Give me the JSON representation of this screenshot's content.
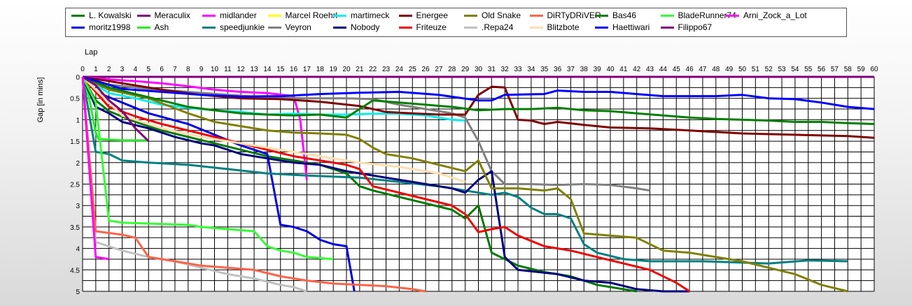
{
  "chart_data": {
    "type": "line",
    "xlabel": "Lap",
    "ylabel": "Gap [in mins]",
    "xlim": [
      0,
      60
    ],
    "ylim": [
      0,
      5
    ],
    "y_inverted": true,
    "grid": true,
    "legend_position": "top",
    "x_ticks": [
      0,
      1,
      2,
      3,
      4,
      5,
      6,
      7,
      8,
      9,
      10,
      11,
      12,
      13,
      14,
      15,
      16,
      17,
      18,
      19,
      20,
      21,
      22,
      23,
      24,
      25,
      26,
      27,
      28,
      29,
      30,
      31,
      32,
      33,
      34,
      35,
      36,
      37,
      38,
      39,
      40,
      41,
      42,
      43,
      44,
      45,
      46,
      47,
      48,
      49,
      50,
      51,
      52,
      53,
      54,
      55,
      56,
      57,
      58,
      59,
      60
    ],
    "y_ticks": [
      0,
      0.5,
      1,
      1.5,
      2,
      2.5,
      3,
      3.5,
      4,
      4.5,
      5
    ],
    "y_tick_labels": [
      "0",
      "0.5",
      "1",
      "1.5",
      "2",
      "2.5",
      "3",
      "3.5",
      "4",
      "4.5",
      "5"
    ],
    "series": [
      {
        "name": "L. Kowalski",
        "color": "#007a00",
        "x": [
          0,
          1,
          2,
          4,
          6,
          8,
          10,
          12,
          14,
          16,
          18,
          20,
          21,
          22,
          24,
          26,
          28,
          29,
          30,
          31,
          32,
          33,
          35,
          37,
          39,
          42
        ],
        "y": [
          0,
          0.55,
          0.8,
          1.05,
          1.25,
          1.4,
          1.55,
          1.7,
          1.85,
          1.95,
          2.05,
          2.25,
          2.55,
          2.65,
          2.8,
          2.95,
          3.1,
          3.3,
          3.0,
          4.1,
          4.25,
          4.4,
          4.55,
          4.65,
          4.85,
          5.0
        ]
      },
      {
        "name": "moritz1998",
        "color": "#0000e0",
        "x": [
          0,
          1,
          3,
          5,
          8,
          10,
          12,
          14,
          15,
          16,
          17,
          18,
          19,
          20,
          20.6
        ],
        "y": [
          0,
          0.35,
          0.6,
          0.85,
          1.1,
          1.35,
          1.6,
          1.8,
          3.45,
          3.5,
          3.6,
          3.8,
          3.9,
          3.95,
          5.0
        ]
      },
      {
        "name": "Meraculix",
        "color": "#800080",
        "x": [
          0,
          60
        ],
        "y": [
          0,
          0
        ]
      },
      {
        "name": "Ash",
        "color": "#22ee22",
        "x": [
          0,
          0.5,
          1,
          1.2,
          3,
          5
        ],
        "y": [
          0,
          0.5,
          1.3,
          1.45,
          1.48,
          1.48
        ]
      },
      {
        "name": "midlander",
        "color": "#ff00ff",
        "x": [
          0,
          2,
          4,
          6,
          8,
          10,
          12,
          14,
          16,
          16.5,
          17
        ],
        "y": [
          0,
          0.06,
          0.1,
          0.15,
          0.22,
          0.3,
          0.35,
          0.38,
          0.45,
          1.0,
          2.4
        ]
      },
      {
        "name": "speedjunkie",
        "color": "#008080",
        "x": [
          0,
          1,
          2,
          3,
          5,
          8,
          11,
          14,
          17,
          21,
          24,
          27,
          29,
          31,
          32,
          33,
          34,
          35,
          36,
          37,
          38,
          39,
          41,
          43,
          45,
          47,
          49,
          52,
          55,
          58
        ],
        "y": [
          0,
          1.75,
          1.8,
          1.95,
          2.0,
          2.05,
          2.15,
          2.25,
          2.3,
          2.35,
          2.45,
          2.55,
          2.65,
          2.75,
          2.7,
          2.8,
          3.05,
          3.2,
          3.2,
          3.3,
          3.9,
          4.1,
          4.25,
          4.3,
          4.3,
          4.3,
          4.32,
          4.35,
          4.28,
          4.3
        ]
      },
      {
        "name": "Marcel Roehrl",
        "color": "#ffff00",
        "x": [],
        "y": []
      },
      {
        "name": "Veyron",
        "color": "#808080",
        "x": [
          0,
          2,
          5,
          8,
          11,
          14,
          17,
          20,
          22,
          24,
          26,
          28,
          29,
          30,
          31,
          32,
          34,
          36,
          38,
          40,
          42,
          43
        ],
        "y": [
          0,
          0.18,
          0.28,
          0.35,
          0.42,
          0.48,
          0.5,
          0.5,
          0.52,
          0.65,
          0.75,
          0.85,
          0.95,
          1.5,
          2.2,
          2.5,
          2.5,
          2.52,
          2.5,
          2.52,
          2.6,
          2.65
        ]
      },
      {
        "name": "martimeck",
        "color": "#00eeee",
        "x": [
          0,
          2,
          4,
          6,
          8,
          10,
          12,
          14,
          16,
          18,
          20,
          22,
          24,
          26,
          28,
          29
        ],
        "y": [
          0,
          0.38,
          0.5,
          0.65,
          0.72,
          0.78,
          0.82,
          0.88,
          0.86,
          0.88,
          0.88,
          0.86,
          0.86,
          0.9,
          1.0,
          1.02
        ]
      },
      {
        "name": "Nobody",
        "color": "#000080",
        "x": [
          0,
          1,
          2,
          3,
          5,
          7,
          9,
          10,
          12,
          14,
          16,
          18,
          20,
          22,
          24,
          25,
          26,
          28,
          29,
          30,
          31,
          32,
          33,
          36,
          38,
          40,
          42,
          44,
          46
        ],
        "y": [
          0,
          0.7,
          0.85,
          1.05,
          1.2,
          1.4,
          1.55,
          1.6,
          1.8,
          1.9,
          2.0,
          2.05,
          2.2,
          2.3,
          2.4,
          2.45,
          2.5,
          2.6,
          2.7,
          2.4,
          2.2,
          4.2,
          4.5,
          4.6,
          4.75,
          4.8,
          4.95,
          5.0,
          5.0
        ]
      },
      {
        "name": "Energee",
        "color": "#800000",
        "x": [
          0,
          3,
          6,
          9,
          12,
          15,
          18,
          21,
          23,
          25,
          27,
          29,
          30,
          31,
          32,
          33,
          34,
          35,
          36,
          38,
          40,
          43,
          46,
          50,
          54,
          58,
          60
        ],
        "y": [
          0,
          0.15,
          0.3,
          0.42,
          0.5,
          0.52,
          0.58,
          0.68,
          0.82,
          0.85,
          0.88,
          0.88,
          0.42,
          0.23,
          0.25,
          1.0,
          1.02,
          1.1,
          1.05,
          1.12,
          1.18,
          1.2,
          1.25,
          1.32,
          1.35,
          1.38,
          1.42
        ]
      },
      {
        "name": "Friteuze",
        "color": "#ee0000",
        "x": [
          0,
          2,
          4,
          6,
          8,
          10,
          12,
          14,
          16,
          18,
          20,
          21,
          22,
          24,
          26,
          28,
          29,
          30,
          31,
          32,
          33,
          35,
          37,
          39,
          41,
          43,
          45,
          46
        ],
        "y": [
          0,
          0.7,
          0.92,
          1.1,
          1.25,
          1.4,
          1.55,
          1.7,
          1.85,
          1.95,
          2.05,
          2.15,
          2.55,
          2.7,
          2.85,
          3.0,
          3.2,
          3.62,
          3.55,
          3.5,
          3.7,
          3.95,
          4.05,
          4.2,
          4.35,
          4.5,
          4.8,
          5.0
        ]
      },
      {
        "name": "Old Snake",
        "color": "#808000",
        "x": [
          0,
          2,
          5,
          8,
          10,
          12,
          14,
          16,
          18,
          20,
          21,
          22,
          23,
          25,
          27,
          29,
          30,
          31,
          33,
          35,
          36,
          37,
          38,
          40,
          42,
          44,
          46,
          48,
          50,
          52,
          54,
          56,
          58
        ],
        "y": [
          0,
          0.3,
          0.5,
          0.85,
          1.05,
          1.15,
          1.25,
          1.3,
          1.32,
          1.35,
          1.45,
          1.65,
          1.8,
          1.9,
          2.05,
          2.2,
          1.95,
          2.6,
          2.6,
          2.65,
          2.6,
          2.85,
          3.65,
          3.7,
          3.75,
          4.05,
          4.1,
          4.2,
          4.3,
          4.45,
          4.6,
          4.85,
          5.0
        ]
      },
      {
        "name": ".Repa24",
        "color": "#c0c0c0",
        "x": [
          0,
          1,
          3,
          5,
          7,
          9,
          11,
          13,
          15,
          16,
          17
        ],
        "y": [
          0,
          3.85,
          4.05,
          4.2,
          4.3,
          4.45,
          4.6,
          4.7,
          4.85,
          4.9,
          5.0
        ]
      },
      {
        "name": "DiRTyDRiVER",
        "color": "#ff6347",
        "x": [
          0,
          1,
          3,
          4,
          5,
          7,
          9,
          11,
          13,
          15,
          17,
          19,
          21,
          23,
          25,
          26
        ],
        "y": [
          0,
          3.6,
          3.68,
          3.75,
          4.2,
          4.3,
          4.4,
          4.45,
          4.5,
          4.65,
          4.75,
          4.82,
          4.85,
          4.88,
          4.95,
          5.0
        ]
      },
      {
        "name": "Blitzbote",
        "color": "#ffdead",
        "x": [
          0,
          3,
          6,
          9,
          12,
          15,
          18,
          21,
          24,
          27,
          29
        ],
        "y": [
          0,
          0.9,
          1.2,
          1.4,
          1.55,
          1.7,
          1.85,
          2.0,
          2.1,
          2.25,
          2.45
        ]
      },
      {
        "name": "Bas46",
        "color": "#008000",
        "x": [
          0,
          2,
          4,
          6,
          8,
          10,
          12,
          14,
          16,
          18,
          20,
          22,
          24,
          26,
          28,
          30,
          32,
          34,
          36,
          38,
          40,
          42,
          44,
          46,
          48,
          50,
          52,
          54,
          56,
          58,
          60
        ],
        "y": [
          0,
          0.25,
          0.4,
          0.55,
          0.7,
          0.78,
          0.85,
          0.88,
          0.9,
          0.88,
          0.95,
          0.55,
          0.6,
          0.65,
          0.7,
          0.78,
          0.75,
          0.75,
          0.72,
          0.78,
          0.8,
          0.85,
          0.9,
          0.95,
          0.98,
          1.0,
          1.02,
          1.05,
          1.05,
          1.08,
          1.1
        ]
      },
      {
        "name": "Haettiwari",
        "color": "#0000ff",
        "x": [
          0,
          3,
          6,
          9,
          12,
          15,
          18,
          21,
          24,
          27,
          30,
          31,
          32,
          35,
          36,
          38,
          40,
          42,
          44,
          46,
          48,
          50,
          52,
          54,
          56,
          58,
          60
        ],
        "y": [
          0,
          0.28,
          0.35,
          0.42,
          0.46,
          0.45,
          0.4,
          0.37,
          0.35,
          0.42,
          0.55,
          0.55,
          0.42,
          0.4,
          0.32,
          0.35,
          0.35,
          0.4,
          0.45,
          0.45,
          0.45,
          0.42,
          0.5,
          0.52,
          0.6,
          0.7,
          0.75
        ]
      },
      {
        "name": "BladeRunner74",
        "color": "#33ff33",
        "x": [
          0,
          1,
          2,
          3,
          5,
          8,
          9,
          11,
          13,
          14,
          15,
          16,
          17,
          19
        ],
        "y": [
          0,
          0.6,
          3.35,
          3.4,
          3.42,
          3.45,
          3.5,
          3.55,
          3.6,
          3.95,
          4.05,
          4.1,
          4.2,
          4.25
        ]
      },
      {
        "name": "Filippo67",
        "color": "#800080",
        "x": [
          0,
          1,
          2,
          3,
          4,
          5
        ],
        "y": [
          0,
          0.2,
          0.55,
          0.8,
          1.2,
          1.5
        ]
      },
      {
        "name": "Arni_Zock_a_Lot",
        "color": "#ff00ff",
        "x": [
          0,
          1,
          2
        ],
        "y": [
          0,
          4.2,
          4.25
        ]
      }
    ]
  }
}
